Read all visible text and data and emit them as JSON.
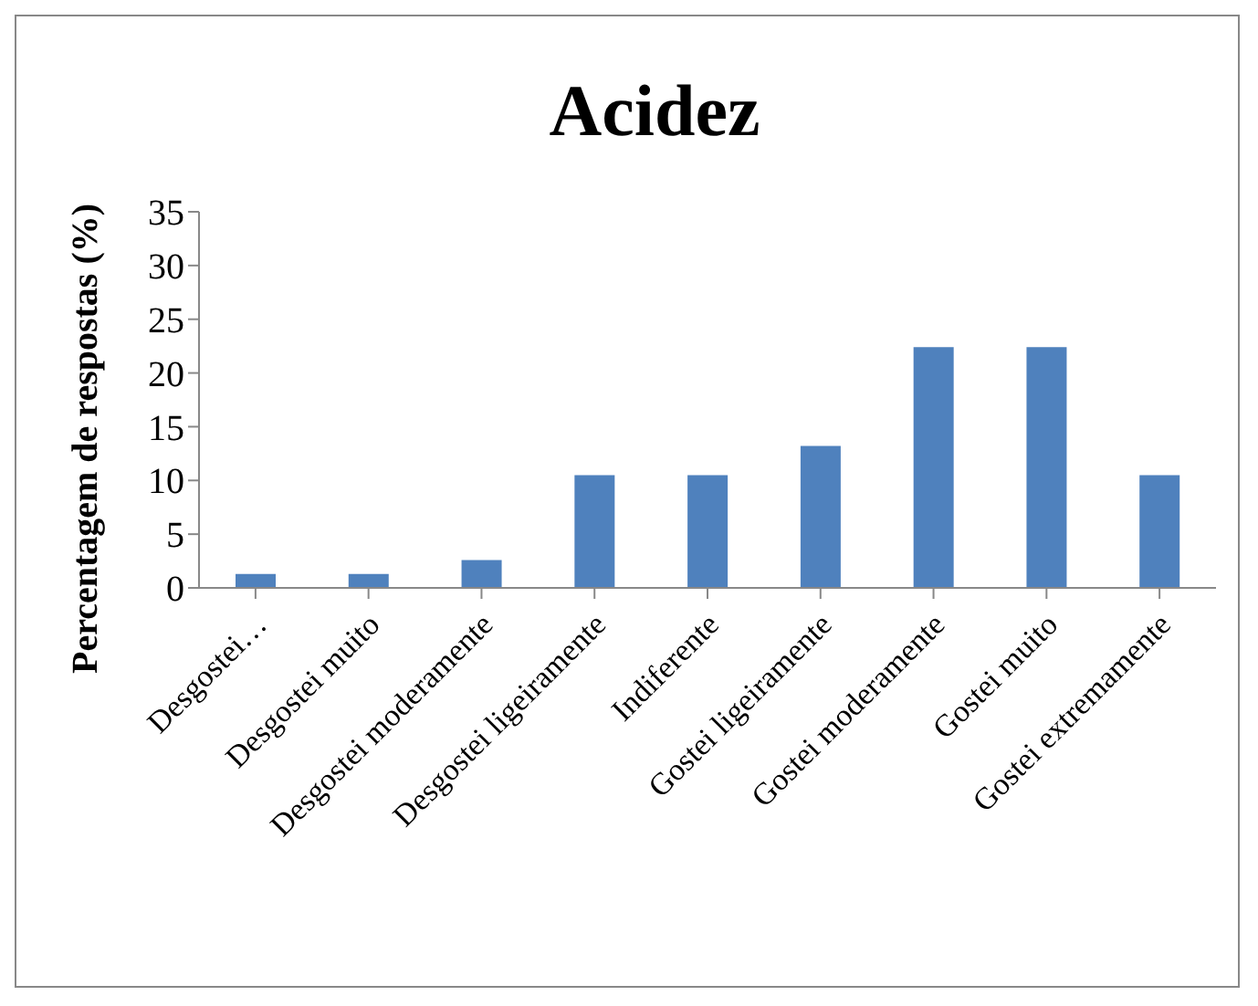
{
  "chart_data": {
    "type": "bar",
    "title": "Acidez",
    "ylabel": "Percentagem de respostas (%)",
    "categories": [
      "Desgostei…",
      "Desgostei muito",
      "Desgostei moderamente",
      "Desgostei ligeiramente",
      "Indiferente",
      "Gostei ligeiramente",
      "Gostei moderamente",
      "Gostei muito",
      "Gostei extremamente"
    ],
    "values": [
      1.3,
      1.3,
      2.6,
      10.5,
      10.5,
      13.2,
      22.4,
      22.4,
      10.5
    ],
    "color": "#4f81bd",
    "ylim": [
      0,
      35
    ],
    "yticks": [
      0,
      5,
      10,
      15,
      20,
      25,
      30,
      35
    ],
    "grid": false,
    "legend": false
  }
}
